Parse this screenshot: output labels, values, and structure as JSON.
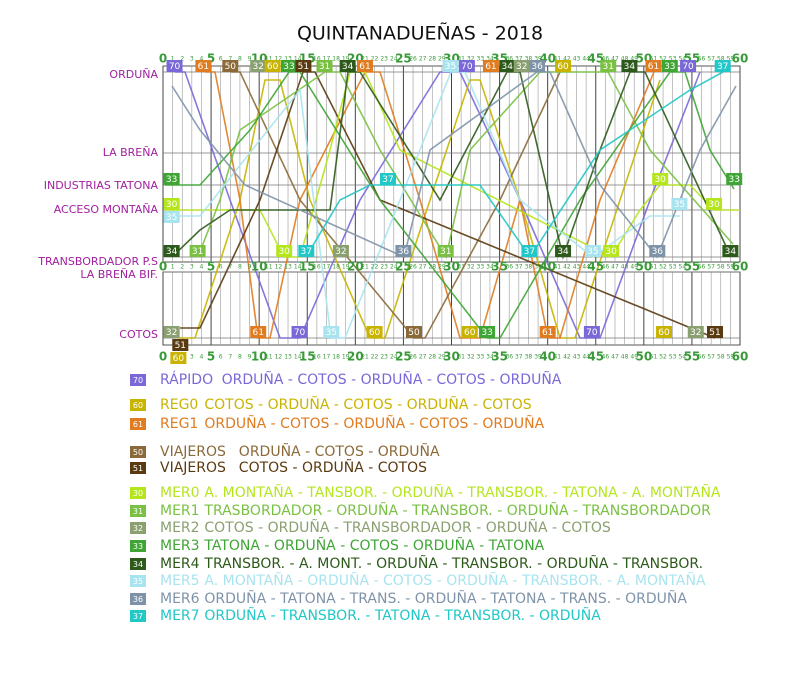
{
  "title": "QUINTANADUEÑAS - 2018",
  "minutes": [
    0,
    1,
    2,
    3,
    4,
    5,
    6,
    7,
    8,
    9,
    10,
    11,
    12,
    13,
    14,
    15,
    16,
    17,
    18,
    19,
    20,
    21,
    22,
    23,
    24,
    25,
    26,
    27,
    28,
    29,
    30,
    31,
    32,
    33,
    34,
    35,
    36,
    37,
    38,
    39,
    40,
    41,
    42,
    43,
    44,
    45,
    46,
    47,
    48,
    49,
    50,
    51,
    52,
    53,
    54,
    55,
    56,
    57,
    58,
    59,
    60
  ],
  "stations": [
    {
      "name": "ORDUÑA",
      "trains": [
        {
          "code": "70",
          "t": 1.2
        },
        {
          "code": "61",
          "t": 4.2
        },
        {
          "code": "50",
          "t": 7
        },
        {
          "code": "32",
          "t": 9.9
        },
        {
          "code": "60",
          "t": 11.4
        },
        {
          "code": "33",
          "t": 13.1
        },
        {
          "code": "51",
          "t": 14.6
        },
        {
          "code": "31",
          "t": 16.8
        },
        {
          "code": "34",
          "t": 19.2
        },
        {
          "code": "61",
          "t": 21
        },
        {
          "code": "35",
          "t": 29.9
        },
        {
          "code": "70",
          "t": 31.6
        },
        {
          "code": "61",
          "t": 34.1
        },
        {
          "code": "34",
          "t": 35.8
        },
        {
          "code": "32",
          "t": 37.3
        },
        {
          "code": "36",
          "t": 38.9
        },
        {
          "code": "60",
          "t": 41.6
        },
        {
          "code": "31",
          "t": 46.3
        },
        {
          "code": "34",
          "t": 48.5
        },
        {
          "code": "61",
          "t": 51
        },
        {
          "code": "33",
          "t": 52.7
        },
        {
          "code": "70",
          "t": 54.6
        },
        {
          "code": "37",
          "t": 58.2
        }
      ]
    },
    {
      "name": "LA BREÑA",
      "trains": []
    },
    {
      "name": "INDUSTRIAS TATONA",
      "trains": [
        {
          "code": "33",
          "t": 0.9
        },
        {
          "code": "37",
          "t": 23.4
        },
        {
          "code": "30",
          "t": 51.7
        },
        {
          "code": "33",
          "t": 59.4
        }
      ]
    },
    {
      "name": "ACCESO MONTAÑA",
      "trains": [
        {
          "code": "30",
          "t": 0.9
        },
        {
          "code": "35",
          "t": 0.9
        },
        {
          "code": "35",
          "t": 53.7
        },
        {
          "code": "30",
          "t": 57.3
        }
      ]
    },
    {
      "name": "TRANSBORDADOR P.S",
      "trains": [
        {
          "code": "34",
          "t": 0.9
        },
        {
          "code": "31",
          "t": 3.6
        },
        {
          "code": "30",
          "t": 12.6
        },
        {
          "code": "37",
          "t": 14.9
        },
        {
          "code": "32",
          "t": 18.5
        },
        {
          "code": "36",
          "t": 25
        },
        {
          "code": "31",
          "t": 29.4
        },
        {
          "code": "37",
          "t": 38.1
        },
        {
          "code": "34",
          "t": 41.6
        },
        {
          "code": "35",
          "t": 44.7
        },
        {
          "code": "30",
          "t": 46.6
        },
        {
          "code": "36",
          "t": 51.4
        },
        {
          "code": "34",
          "t": 59
        }
      ]
    },
    {
      "name": "LA BREÑA BIF.",
      "trains": []
    },
    {
      "name": "COTOS",
      "trains": [
        {
          "code": "32",
          "t": 0.9
        },
        {
          "code": "51",
          "t": 1.8
        },
        {
          "code": "60",
          "t": 1.6
        },
        {
          "code": "61",
          "t": 9.9
        },
        {
          "code": "70",
          "t": 14.2
        },
        {
          "code": "35",
          "t": 17.5
        },
        {
          "code": "60",
          "t": 22
        },
        {
          "code": "50",
          "t": 26.1
        },
        {
          "code": "60",
          "t": 31.9
        },
        {
          "code": "33",
          "t": 33.7
        },
        {
          "code": "61",
          "t": 40
        },
        {
          "code": "70",
          "t": 44.6
        },
        {
          "code": "60",
          "t": 52.1
        },
        {
          "code": "32",
          "t": 55.4
        },
        {
          "code": "51",
          "t": 57.4
        }
      ]
    }
  ],
  "legend": [
    {
      "code": "70",
      "name": "RÁPIDO",
      "route": "ORDUÑA - COTOS - ORDUÑA - COTOS - ORDUÑA",
      "color": "#7b68d8"
    },
    {
      "code": "60",
      "name": "REG0",
      "route": "COTOS - ORDUÑA - COTOS - ORDUÑA - COTOS",
      "color": "#c8b400"
    },
    {
      "code": "61",
      "name": "REG1",
      "route": "ORDUÑA - COTOS - ORDUÑA - COTOS - ORDUÑA",
      "color": "#e07b20"
    },
    {
      "code": "50",
      "name": "VIAJEROS",
      "route": "ORDUÑA - COTOS - ORDUÑA",
      "color": "#8b6a3a"
    },
    {
      "code": "51",
      "name": "VIAJEROS",
      "route": "COTOS - ORDUÑA - COTOS",
      "color": "#5a3a10"
    },
    {
      "code": "30",
      "name": "MER0",
      "route": "A. MONTAÑA - TANSBOR. - ORDUÑA - TRANSBOR. - TATONA - A. MONTAÑA",
      "color": "#b5e61d"
    },
    {
      "code": "31",
      "name": "MER1",
      "route": "TRASBORDADOR - ORDUÑA - TRANSBOR. - ORDUÑA - TRANSBORDADOR",
      "color": "#7ac143"
    },
    {
      "code": "32",
      "name": "MER2",
      "route": "COTOS - ORDUÑA - TRANSBORDADOR - ORDUÑA - COTOS",
      "color": "#8aa070"
    },
    {
      "code": "33",
      "name": "MER3",
      "route": "TATONA - ORDUÑA - COTOS - ORDUÑA - TATONA",
      "color": "#3fa535"
    },
    {
      "code": "34",
      "name": "MER4",
      "route": "TRANSBOR. - A. MONT. - ORDUÑA  - TRANSBOR. - ORDUÑA - TRANSBOR.",
      "color": "#2d5a1b"
    },
    {
      "code": "35",
      "name": "MER5",
      "route": "A. MONTAÑA - ORDUÑA - COTOS - ORDUÑA - TRANSBOR. - A. MONTAÑA",
      "color": "#a8e4ef"
    },
    {
      "code": "36",
      "name": "MER6",
      "route": "ORDUÑA - TATONA - TRANS. - ORDUÑA - TATONA - TRANS. - ORDUÑA",
      "color": "#7f93a8"
    },
    {
      "code": "37",
      "name": "MER7",
      "route": "ORDUÑA - TRANSBOR. - TATONA - TRANSBOR. - ORDUÑA",
      "color": "#22c7c7"
    }
  ]
}
